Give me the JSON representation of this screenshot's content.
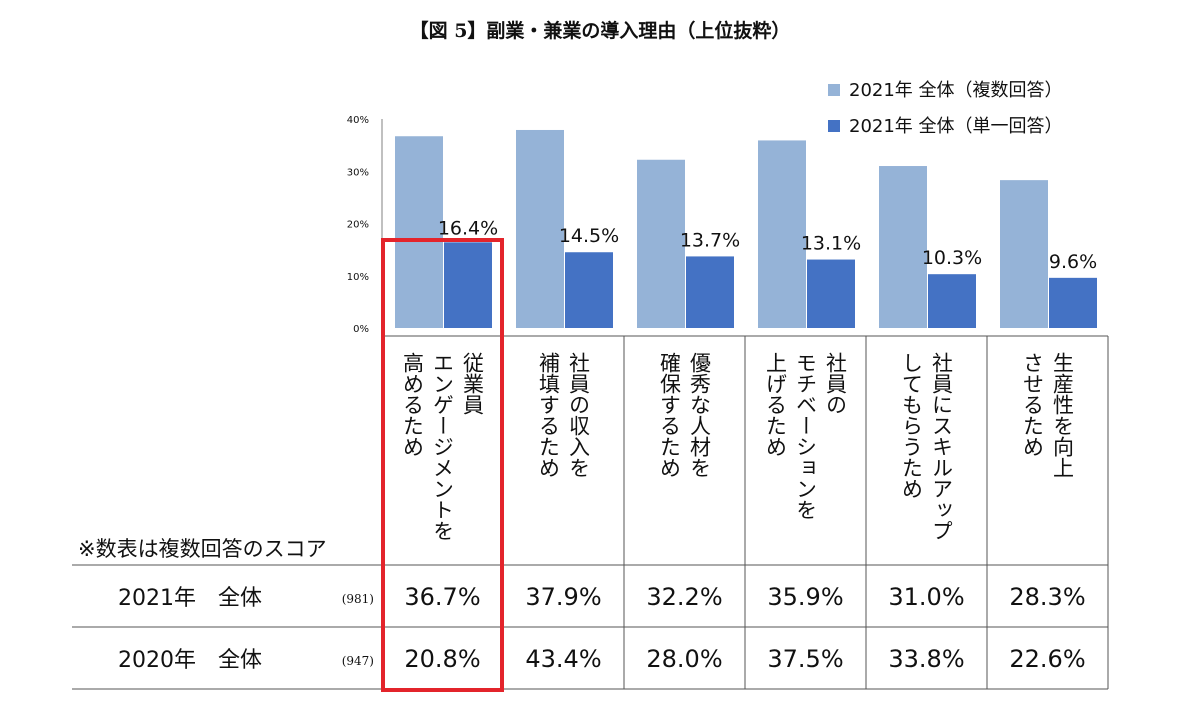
{
  "title": "【図 5】副業・兼業の導入理由（上位抜粋）",
  "note": "※数表は複数回答のスコア",
  "colors": {
    "multi": "#95b3d7",
    "single": "#4472c4",
    "highlight": "#e3242b",
    "grid": "#808080"
  },
  "chart_data": {
    "type": "bar",
    "categories": [
      [
        "従業員",
        "エンゲージメントを",
        "高めるため"
      ],
      [
        "社員の収入を",
        "補填するため"
      ],
      [
        "優秀な人材を",
        "確保するため"
      ],
      [
        "社員の",
        "モチベーションを",
        "上げるため"
      ],
      [
        "社員にスキルアップ",
        "してもらうため"
      ],
      [
        "生産性を向上",
        "させるため"
      ]
    ],
    "series": [
      {
        "name": "2021年 全体（複数回答）",
        "values": [
          36.7,
          37.9,
          32.2,
          35.9,
          31.0,
          28.3
        ]
      },
      {
        "name": "2021年 全体（単一回答）",
        "values": [
          16.4,
          14.5,
          13.7,
          13.1,
          10.3,
          9.6
        ],
        "labels": [
          "16.4%",
          "14.5%",
          "13.7%",
          "13.1%",
          "10.3%",
          "9.6%"
        ]
      }
    ],
    "ylim": [
      0,
      40
    ],
    "yticks": [
      "0%",
      "10%",
      "20%",
      "30%",
      "40%"
    ],
    "grid": false,
    "legend": "top-right",
    "highlighted_category": 0
  },
  "table": {
    "rows": [
      {
        "label": "2021年　全体",
        "n": "(981)",
        "values": [
          "36.7%",
          "37.9%",
          "32.2%",
          "35.9%",
          "31.0%",
          "28.3%"
        ]
      },
      {
        "label": "2020年　全体",
        "n": "(947)",
        "values": [
          "20.8%",
          "43.4%",
          "28.0%",
          "37.5%",
          "33.8%",
          "22.6%"
        ]
      }
    ]
  }
}
